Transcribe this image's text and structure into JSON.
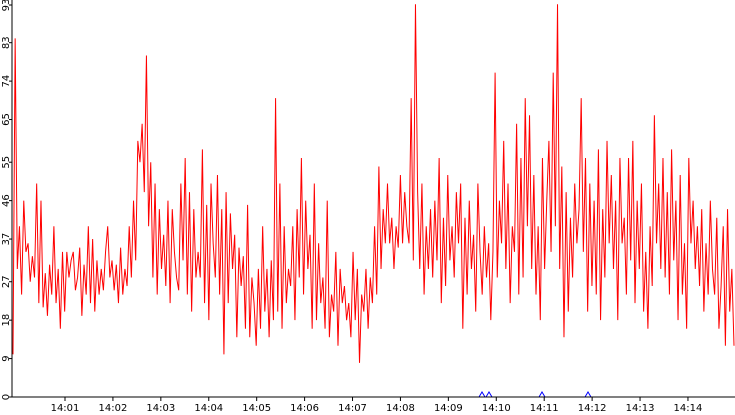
{
  "chart_data": {
    "type": "line",
    "title": "",
    "xlabel": "",
    "ylabel": "",
    "ylim": [
      0,
      93
    ],
    "yticks": [
      "0",
      "9",
      "18",
      "27",
      "37",
      "46",
      "55",
      "65",
      "74",
      "83",
      "93"
    ],
    "xtick_labels": [
      "14:01",
      "14:02",
      "14:03",
      "14:04",
      "14:05",
      "14:06",
      "14:07",
      "14:08",
      "14:09",
      "14:10",
      "14:11",
      "14:12",
      "14:13",
      "14:14"
    ],
    "grid": false,
    "legend": "none",
    "colors": {
      "line": "#ff0000",
      "axis": "#000000",
      "markers": "#0000ff",
      "background": "#ffffff"
    },
    "series": [
      {
        "values": [
          10,
          84,
          30,
          40,
          24,
          46,
          34,
          36,
          27,
          33,
          28,
          50,
          22,
          46,
          21,
          29,
          19,
          31,
          24,
          40,
          22,
          30,
          16,
          34,
          20,
          34,
          28,
          32,
          34,
          25,
          28,
          35,
          19,
          31,
          24,
          40,
          22,
          37,
          20,
          32,
          24,
          30,
          25,
          34,
          40,
          28,
          32,
          25,
          31,
          22,
          35,
          24,
          30,
          26,
          40,
          28,
          46,
          32,
          60,
          55,
          64,
          48,
          80,
          40,
          55,
          28,
          50,
          24,
          44,
          30,
          38,
          26,
          46,
          22,
          44,
          34,
          28,
          25,
          50,
          32,
          56,
          24,
          48,
          20,
          44,
          28,
          34,
          28,
          58,
          22,
          45,
          18,
          50,
          36,
          28,
          52,
          24,
          44,
          10,
          48,
          22,
          43,
          30,
          38,
          14,
          35,
          26,
          33,
          16,
          45,
          14,
          28,
          22,
          12,
          30,
          16,
          40,
          20,
          30,
          14,
          32,
          18,
          70,
          20,
          50,
          16,
          40,
          22,
          30,
          26,
          40,
          18,
          44,
          28,
          56,
          24,
          46,
          30,
          38,
          16,
          50,
          18,
          36,
          22,
          28,
          16,
          46,
          14,
          24,
          20,
          34,
          12,
          30,
          22,
          26,
          18,
          22,
          14,
          34,
          18,
          30,
          8,
          24,
          20,
          30,
          16,
          28,
          22,
          40,
          24,
          54,
          30,
          44,
          36,
          50,
          36,
          42,
          30,
          40,
          35,
          52,
          36,
          48,
          40,
          36,
          70,
          32,
          92,
          48,
          30,
          50,
          24,
          40,
          30,
          44,
          28,
          46,
          32,
          56,
          22,
          42,
          26,
          52,
          32,
          40,
          28,
          48,
          36,
          50,
          16,
          42,
          24,
          46,
          30,
          38,
          20,
          50,
          34,
          24,
          40,
          28,
          36,
          18,
          34,
          76,
          28,
          46,
          36,
          60,
          30,
          50,
          22,
          40,
          34,
          64,
          24,
          56,
          28,
          70,
          40,
          66,
          30,
          52,
          24,
          40,
          18,
          56,
          30,
          46,
          60,
          34,
          76,
          40,
          92,
          30,
          54,
          14,
          48,
          20,
          42,
          28,
          50,
          36,
          44,
          70,
          34,
          56,
          20,
          50,
          26,
          46,
          24,
          58,
          18,
          44,
          28,
          60,
          36,
          52,
          30,
          46,
          18,
          56,
          36,
          42,
          24,
          56,
          32,
          60,
          22,
          46,
          30,
          50,
          20,
          34,
          16,
          40,
          26,
          66,
          36,
          50,
          30,
          56,
          28,
          48,
          24,
          58,
          32,
          46,
          18,
          52,
          24,
          36,
          16,
          56,
          36,
          46,
          30,
          40,
          26,
          44,
          20,
          36,
          24,
          46,
          30,
          24,
          42,
          16,
          26,
          40,
          12,
          44,
          20,
          30,
          12
        ]
      }
    ]
  }
}
